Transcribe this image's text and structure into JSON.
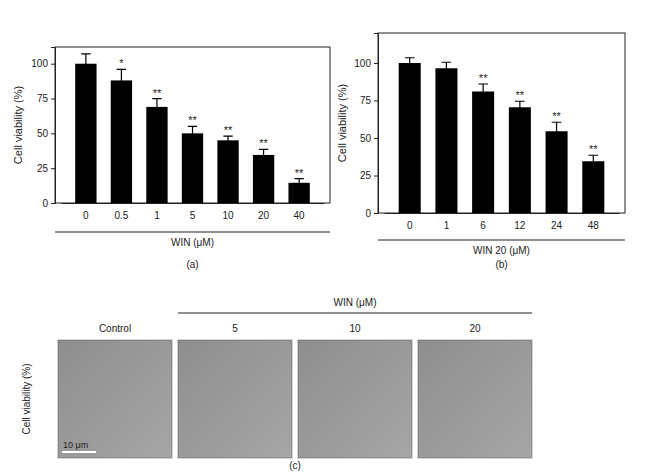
{
  "chart_data": [
    {
      "type": "bar",
      "title": "(a)",
      "x_label": "WIN (μM)",
      "y_label": "Cell viability (%)",
      "categories": [
        "0",
        "0.5",
        "1",
        "5",
        "10",
        "20",
        "40"
      ],
      "values": [
        100,
        88,
        69,
        50,
        45,
        34.5,
        14.5
      ],
      "errors": [
        7,
        8,
        6,
        5,
        3,
        4,
        3
      ],
      "annotations": [
        null,
        "*",
        "**",
        "**",
        "**",
        "**",
        "**"
      ],
      "color": "#000000",
      "ylim": [
        0,
        112
      ],
      "yticks": [
        0,
        25,
        50,
        75,
        100
      ],
      "grid": false
    },
    {
      "type": "bar",
      "title": "(b)",
      "x_label": "WIN 20 (μM)",
      "y_label": "Cell viability (%)",
      "categories": [
        "0",
        "1",
        "6",
        "12",
        "24",
        "48"
      ],
      "values": [
        100,
        96.5,
        81,
        70.5,
        54.5,
        34.5
      ],
      "errors": [
        3.5,
        4,
        5,
        4,
        6,
        4
      ],
      "annotations": [
        null,
        null,
        "**",
        "**",
        "**",
        "**"
      ],
      "color": "#000000",
      "ylim": [
        0,
        120
      ],
      "yticks": [
        0,
        25,
        50,
        75,
        100
      ],
      "grid": false
    }
  ],
  "micrographs": {
    "header": "WIN (μM)",
    "labels": [
      "Control",
      "5",
      "10",
      "20"
    ],
    "y_label": "Cell viability (%)",
    "scale_bar": "10 μm",
    "title": "(c)"
  }
}
